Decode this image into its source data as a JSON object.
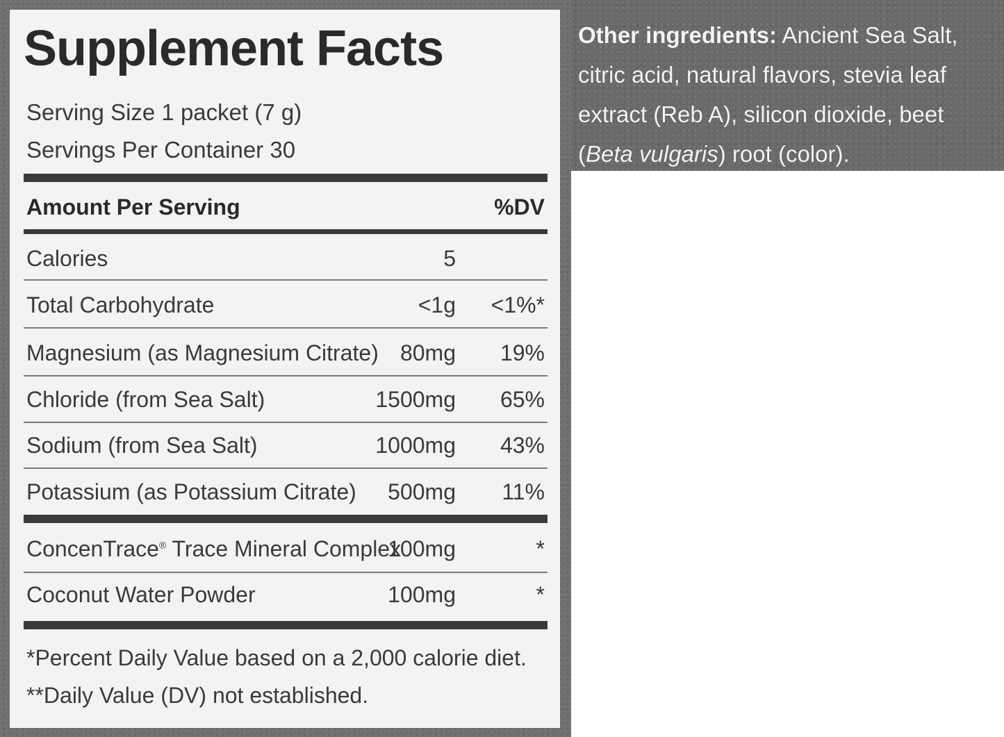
{
  "label": {
    "title": "Supplement Facts",
    "serving_size": "Serving Size 1 packet (7 g)",
    "servings_per_container": "Servings Per Container 30",
    "amount_header": "Amount Per Serving",
    "dv_header": "%DV",
    "rows": [
      {
        "name": "Calories",
        "amount": "5",
        "dv": ""
      },
      {
        "name": "Total Carbohydrate",
        "amount": "<1g",
        "dv": "<1%*"
      },
      {
        "name": "Magnesium (as Magnesium Citrate)",
        "amount": "80mg",
        "dv": "19%"
      },
      {
        "name": "Chloride (from Sea Salt)",
        "amount": "1500mg",
        "dv": "65%"
      },
      {
        "name": "Sodium (from Sea Salt)",
        "amount": "1000mg",
        "dv": "43%"
      },
      {
        "name": "Potassium (as Potassium Citrate)",
        "amount": "500mg",
        "dv": "11%"
      }
    ],
    "rows2": [
      {
        "name": "ConcenTrace",
        "mark": "®",
        "name_rest": " Trace Mineral Complex",
        "amount": "100mg",
        "dv": "*"
      },
      {
        "name": "Coconut Water Powder",
        "amount": "100mg",
        "dv": "*"
      }
    ],
    "footnote1": "*Percent Daily Value based on a 2,000 calorie diet.",
    "footnote2": "**Daily Value (DV) not established."
  },
  "other_ingredients": {
    "label": "Other ingredients:",
    "text_1": " Ancient Sea Salt, citric acid, natural flavors, stevia leaf extract (Reb A), silicon dioxide, beet (",
    "text_italic": "Beta vulgaris",
    "text_2": ") root (color)."
  }
}
